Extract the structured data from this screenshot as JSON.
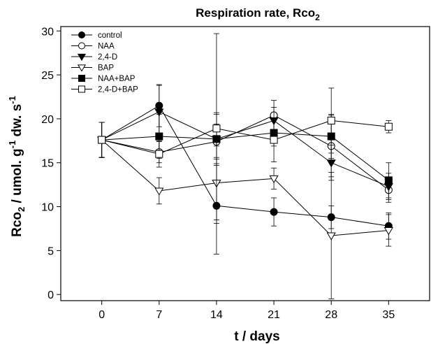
{
  "chart_data": {
    "type": "line",
    "title": "Respiration rate, Rco",
    "title_sub": "2",
    "xlabel": "t / days",
    "ylabel": {
      "parts": [
        {
          "t": "Rco",
          "sub": false,
          "sup": false
        },
        {
          "t": "2",
          "sub": true,
          "sup": false
        },
        {
          "t": " / umol. g",
          "sub": false,
          "sup": false
        },
        {
          "t": "-1",
          "sub": false,
          "sup": true
        },
        {
          "t": " dw. s",
          "sub": false,
          "sup": false
        },
        {
          "t": "-1",
          "sub": false,
          "sup": true
        }
      ]
    },
    "x": [
      0,
      7,
      14,
      21,
      28,
      35
    ],
    "xlim": [
      -5,
      40
    ],
    "ylim": [
      -0.7,
      30.5
    ],
    "xticks": [
      0,
      7,
      14,
      21,
      28,
      35
    ],
    "yticks": [
      0,
      5,
      10,
      15,
      20,
      25,
      30
    ],
    "legend_position": "top-left",
    "grid": false,
    "series": [
      {
        "name": "control",
        "marker": "circle",
        "filled": true,
        "values": [
          17.6,
          21.5,
          10.1,
          9.4,
          8.8,
          7.8
        ],
        "errors": [
          2.0,
          2.4,
          5.5,
          1.6,
          1.3,
          1.5
        ]
      },
      {
        "name": "NAA",
        "marker": "circle",
        "filled": false,
        "values": [
          17.6,
          16.2,
          17.4,
          20.4,
          16.9,
          11.9
        ],
        "errors": [
          2.0,
          1.2,
          2.0,
          1.7,
          3.5,
          1.4
        ]
      },
      {
        "name": "2,4-D",
        "marker": "triangle-down",
        "filled": true,
        "values": [
          17.6,
          20.8,
          17.7,
          19.8,
          15.0,
          12.3
        ],
        "errors": [
          2.0,
          3.0,
          2.8,
          1.5,
          2.0,
          1.5
        ]
      },
      {
        "name": "BAP",
        "marker": "triangle-down",
        "filled": false,
        "values": [
          17.6,
          11.8,
          12.7,
          13.2,
          6.7,
          7.3
        ],
        "errors": [
          2.0,
          1.5,
          4.2,
          1.2,
          7.2,
          1.8
        ]
      },
      {
        "name": "NAA+BAP",
        "marker": "square",
        "filled": true,
        "values": [
          17.6,
          18.0,
          17.7,
          18.4,
          18.0,
          13.0
        ],
        "errors": [
          2.0,
          2.5,
          3.0,
          1.5,
          2.5,
          2.0
        ]
      },
      {
        "name": "2,4-D+BAP",
        "marker": "square",
        "filled": false,
        "values": [
          17.6,
          16.0,
          18.9,
          17.6,
          19.8,
          19.1
        ],
        "errors": [
          2.0,
          1.5,
          10.8,
          2.5,
          3.7,
          0.7
        ]
      }
    ],
    "colors": {
      "line": "#000000",
      "background": "#ffffff"
    }
  }
}
